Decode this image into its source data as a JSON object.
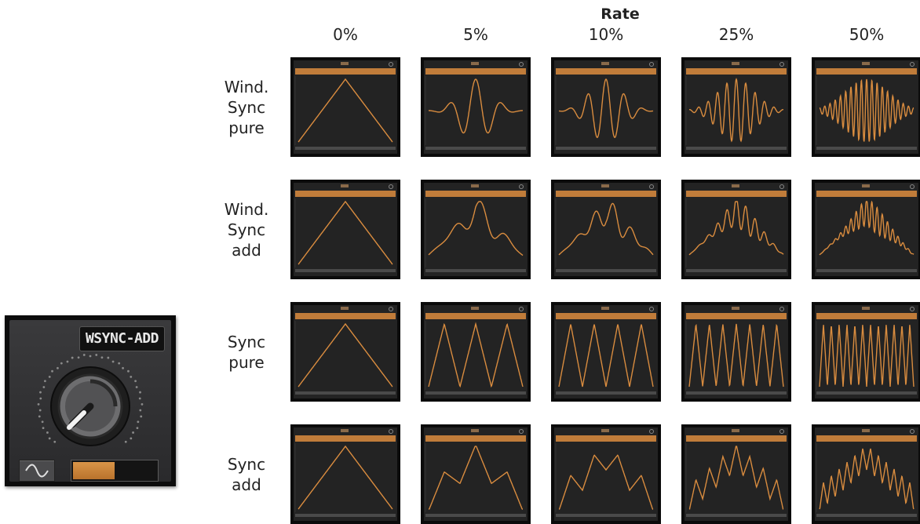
{
  "knob_panel": {
    "mode_label": "WSYNC-ADD",
    "knob_icon": "rotary-knob-icon",
    "wave_button_icon": "sine-wave-icon",
    "level_fraction": 0.5,
    "accent_color": "#d98c3f"
  },
  "grid": {
    "axis_title": "Rate",
    "columns": [
      "0%",
      "5%",
      "10%",
      "25%",
      "50%"
    ],
    "rows": [
      {
        "label": "Wind.\nSync\npure",
        "mode": "wsync-pure"
      },
      {
        "label": "Wind.\nSync\nadd",
        "mode": "wsync-add"
      },
      {
        "label": "Sync\npure",
        "mode": "sync-pure"
      },
      {
        "label": "Sync\nadd",
        "mode": "sync-add"
      }
    ],
    "rate_values": [
      0,
      5,
      10,
      25,
      50
    ],
    "wave_color": "#d98c3f",
    "cell_icon": "oscilloscope-waveform-icon"
  }
}
